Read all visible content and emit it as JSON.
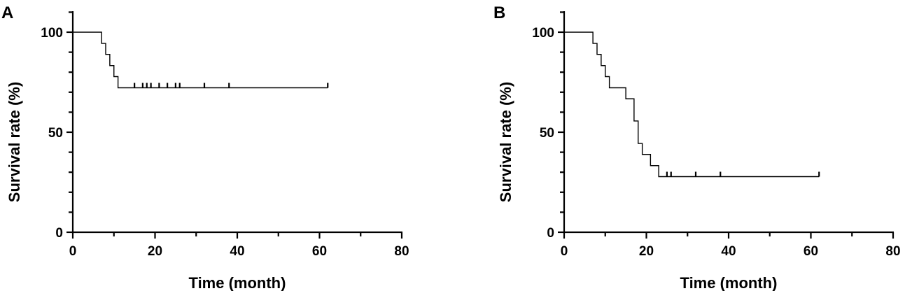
{
  "chart_data": [
    {
      "panel": "A",
      "type": "line",
      "title": "",
      "xlabel": "Time (month)",
      "ylabel": "Survival rate (%)",
      "xlim": [
        0,
        80
      ],
      "ylim": [
        0,
        100
      ],
      "x_ticks": [
        "0",
        "20",
        "40",
        "60",
        "80"
      ],
      "y_ticks": [
        "0",
        "50",
        "100"
      ],
      "step": true,
      "grid": false,
      "legend": "none",
      "series": [
        {
          "steps": [
            [
              0,
              100
            ],
            [
              7,
              94.4
            ],
            [
              8,
              88.9
            ],
            [
              9,
              83.3
            ],
            [
              10,
              77.8
            ],
            [
              11,
              72.2
            ],
            [
              62,
              72.2
            ]
          ],
          "censored": [
            15,
            17,
            18,
            19,
            21,
            23,
            25,
            26,
            32,
            38,
            62
          ]
        }
      ]
    },
    {
      "panel": "B",
      "type": "line",
      "title": "",
      "xlabel": "Time (month)",
      "ylabel": "Survival rate (%)",
      "xlim": [
        0,
        80
      ],
      "ylim": [
        0,
        100
      ],
      "x_ticks": [
        "0",
        "20",
        "40",
        "60",
        "80"
      ],
      "y_ticks": [
        "0",
        "50",
        "100"
      ],
      "step": true,
      "grid": false,
      "legend": "none",
      "series": [
        {
          "steps": [
            [
              0,
              100
            ],
            [
              7,
              94.4
            ],
            [
              8,
              88.9
            ],
            [
              9,
              83.3
            ],
            [
              10,
              77.8
            ],
            [
              11,
              72.2
            ],
            [
              15,
              66.7
            ],
            [
              17,
              55.6
            ],
            [
              18,
              44.4
            ],
            [
              19,
              38.9
            ],
            [
              21,
              33.3
            ],
            [
              23,
              27.8
            ],
            [
              62,
              27.8
            ]
          ],
          "censored": [
            25,
            26,
            32,
            38,
            62
          ]
        }
      ]
    }
  ]
}
